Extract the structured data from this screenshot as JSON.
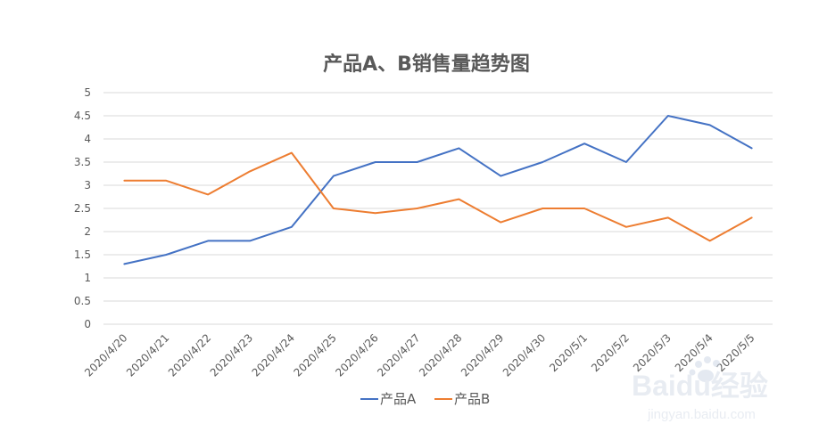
{
  "chart_data": {
    "type": "line",
    "title": "产品A、B销售量趋势图",
    "xlabel": "",
    "ylabel": "",
    "categories": [
      "2020/4/20",
      "2020/4/21",
      "2020/4/22",
      "2020/4/23",
      "2020/4/24",
      "2020/4/25",
      "2020/4/26",
      "2020/4/27",
      "2020/4/28",
      "2020/4/29",
      "2020/4/30",
      "2020/5/1",
      "2020/5/2",
      "2020/5/3",
      "2020/5/4",
      "2020/5/5"
    ],
    "y_ticks": [
      "0",
      "0.5",
      "1",
      "1.5",
      "2",
      "2.5",
      "3",
      "3.5",
      "4",
      "4.5",
      "5"
    ],
    "ylim": [
      0,
      5
    ],
    "grid": true,
    "legend_position": "bottom",
    "series": [
      {
        "name": "产品A",
        "color": "#4472c4",
        "values": [
          1.3,
          1.5,
          1.8,
          1.8,
          2.1,
          3.2,
          3.5,
          3.5,
          3.8,
          3.2,
          3.5,
          3.9,
          3.5,
          4.5,
          4.3,
          3.8
        ]
      },
      {
        "name": "产品B",
        "color": "#ed7d31",
        "values": [
          3.1,
          3.1,
          2.8,
          3.3,
          3.7,
          2.5,
          2.4,
          2.5,
          2.7,
          2.2,
          2.5,
          2.5,
          2.1,
          2.3,
          1.8,
          2.3
        ]
      }
    ]
  },
  "watermark": {
    "text": "Baidu经验",
    "url_text": "jingyan.baidu.com"
  }
}
